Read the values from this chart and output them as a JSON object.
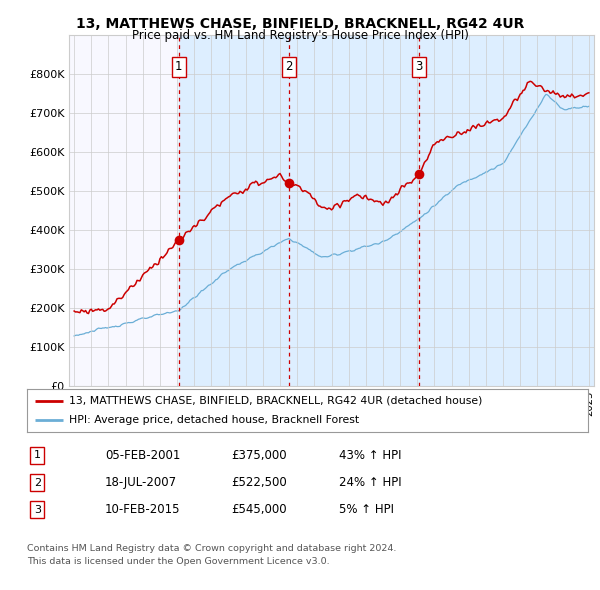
{
  "title1": "13, MATTHEWS CHASE, BINFIELD, BRACKNELL, RG42 4UR",
  "title2": "Price paid vs. HM Land Registry's House Price Index (HPI)",
  "ylim": [
    0,
    900000
  ],
  "yticks": [
    0,
    100000,
    200000,
    300000,
    400000,
    500000,
    600000,
    700000,
    800000
  ],
  "ytick_labels": [
    "£0",
    "£100K",
    "£200K",
    "£300K",
    "£400K",
    "£500K",
    "£600K",
    "£700K",
    "£800K"
  ],
  "hpi_color": "#6baed6",
  "price_color": "#cc0000",
  "vline_color": "#cc0000",
  "span_color": "#ddeeff",
  "sale1": {
    "date_num": 2001.09,
    "price": 375000,
    "label": "1"
  },
  "sale2": {
    "date_num": 2007.54,
    "price": 522500,
    "label": "2"
  },
  "sale3": {
    "date_num": 2015.11,
    "price": 545000,
    "label": "3"
  },
  "xlim_start": 1994.7,
  "xlim_end": 2025.3,
  "legend_line1": "13, MATTHEWS CHASE, BINFIELD, BRACKNELL, RG42 4UR (detached house)",
  "legend_line2": "HPI: Average price, detached house, Bracknell Forest",
  "table_rows": [
    {
      "num": "1",
      "date": "05-FEB-2001",
      "price": "£375,000",
      "hpi": "43% ↑ HPI"
    },
    {
      "num": "2",
      "date": "18-JUL-2007",
      "price": "£522,500",
      "hpi": "24% ↑ HPI"
    },
    {
      "num": "3",
      "date": "10-FEB-2015",
      "price": "£545,000",
      "hpi": "5% ↑ HPI"
    }
  ],
  "footnote1": "Contains HM Land Registry data © Crown copyright and database right 2024.",
  "footnote2": "This data is licensed under the Open Government Licence v3.0.",
  "background_color": "#ffffff",
  "grid_color": "#cccccc",
  "plot_bg": "#f8f8ff"
}
